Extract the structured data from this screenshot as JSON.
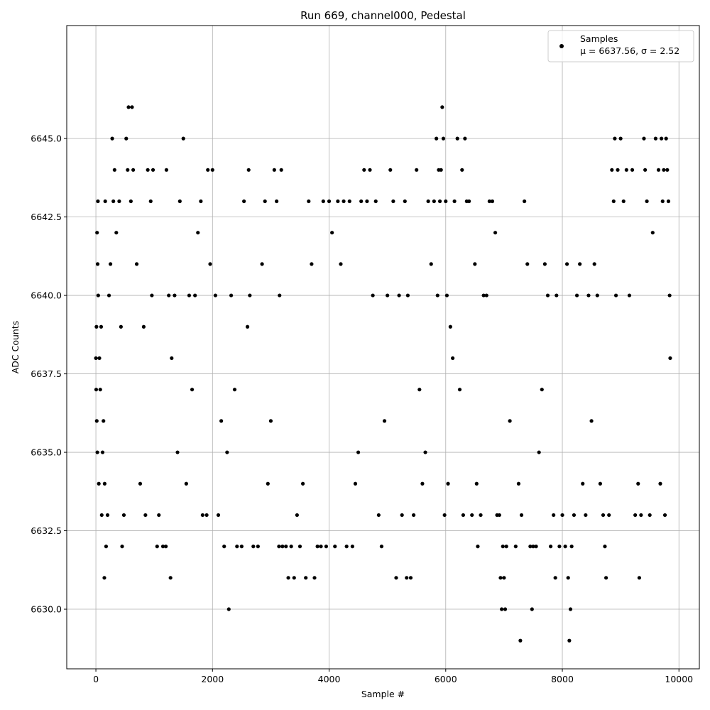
{
  "chart_data": {
    "type": "scatter",
    "title": "Run 669, channel000, Pedestal",
    "xlabel": "Sample #",
    "ylabel": "ADC Counts",
    "xlim": [
      -500,
      10350
    ],
    "ylim": [
      6628.1,
      6648.6
    ],
    "xticks": [
      0,
      2000,
      4000,
      6000,
      8000,
      10000
    ],
    "xtick_labels": [
      "0",
      "2000",
      "4000",
      "6000",
      "8000",
      "10000"
    ],
    "yticks": [
      6630.0,
      6632.5,
      6635.0,
      6637.5,
      6640.0,
      6642.5,
      6645.0
    ],
    "ytick_labels": [
      "6630.0",
      "6632.5",
      "6635.0",
      "6637.5",
      "6640.0",
      "6642.5",
      "6645.0"
    ],
    "grid": true,
    "marker_color": "#000000",
    "legend": {
      "position": "top-right",
      "label": "Samples",
      "stats_label": "μ = 6637.56, σ = 2.52"
    },
    "series": [
      {
        "name": "Samples",
        "points": [
          [
            0,
            6638
          ],
          [
            5,
            6637
          ],
          [
            10,
            6639
          ],
          [
            15,
            6636
          ],
          [
            20,
            6642
          ],
          [
            25,
            6635
          ],
          [
            30,
            6641
          ],
          [
            35,
            6643
          ],
          [
            40,
            6640
          ],
          [
            50,
            6634
          ],
          [
            60,
            6638
          ],
          [
            75,
            6637
          ],
          [
            90,
            6639
          ],
          [
            100,
            6633
          ],
          [
            115,
            6635
          ],
          [
            130,
            6636
          ],
          [
            145,
            6631
          ],
          [
            150,
            6634
          ],
          [
            160,
            6643
          ],
          [
            175,
            6632
          ],
          [
            200,
            6633
          ],
          [
            225,
            6640
          ],
          [
            250,
            6641
          ],
          [
            280,
            6645
          ],
          [
            300,
            6643
          ],
          [
            320,
            6644
          ],
          [
            350,
            6642
          ],
          [
            400,
            6643
          ],
          [
            430,
            6639
          ],
          [
            450,
            6632
          ],
          [
            480,
            6633
          ],
          [
            520,
            6645
          ],
          [
            545,
            6644
          ],
          [
            560,
            6646
          ],
          [
            600,
            6643
          ],
          [
            620,
            6646
          ],
          [
            640,
            6644
          ],
          [
            700,
            6641
          ],
          [
            760,
            6634
          ],
          [
            820,
            6639
          ],
          [
            850,
            6633
          ],
          [
            890,
            6644
          ],
          [
            940,
            6643
          ],
          [
            960,
            6640
          ],
          [
            980,
            6644
          ],
          [
            1050,
            6632
          ],
          [
            1080,
            6633
          ],
          [
            1150,
            6632
          ],
          [
            1200,
            6632
          ],
          [
            1210,
            6644
          ],
          [
            1250,
            6640
          ],
          [
            1280,
            6631
          ],
          [
            1300,
            6638
          ],
          [
            1350,
            6640
          ],
          [
            1400,
            6635
          ],
          [
            1440,
            6643
          ],
          [
            1500,
            6645
          ],
          [
            1550,
            6634
          ],
          [
            1600,
            6640
          ],
          [
            1650,
            6637
          ],
          [
            1700,
            6640
          ],
          [
            1750,
            6642
          ],
          [
            1800,
            6643
          ],
          [
            1830,
            6633
          ],
          [
            1900,
            6633
          ],
          [
            1920,
            6644
          ],
          [
            1960,
            6641
          ],
          [
            2000,
            6644
          ],
          [
            2050,
            6640
          ],
          [
            2100,
            6633
          ],
          [
            2150,
            6636
          ],
          [
            2200,
            6632
          ],
          [
            2250,
            6635
          ],
          [
            2280,
            6630
          ],
          [
            2320,
            6640
          ],
          [
            2380,
            6637
          ],
          [
            2420,
            6632
          ],
          [
            2500,
            6632
          ],
          [
            2540,
            6643
          ],
          [
            2600,
            6639
          ],
          [
            2620,
            6644
          ],
          [
            2640,
            6640
          ],
          [
            2700,
            6632
          ],
          [
            2780,
            6632
          ],
          [
            2850,
            6641
          ],
          [
            2900,
            6643
          ],
          [
            2950,
            6634
          ],
          [
            3000,
            6636
          ],
          [
            3060,
            6644
          ],
          [
            3100,
            6643
          ],
          [
            3140,
            6632
          ],
          [
            3150,
            6640
          ],
          [
            3180,
            6644
          ],
          [
            3200,
            6632
          ],
          [
            3260,
            6632
          ],
          [
            3300,
            6631
          ],
          [
            3350,
            6632
          ],
          [
            3400,
            6631
          ],
          [
            3450,
            6633
          ],
          [
            3500,
            6632
          ],
          [
            3550,
            6634
          ],
          [
            3600,
            6631
          ],
          [
            3650,
            6643
          ],
          [
            3700,
            6641
          ],
          [
            3750,
            6631
          ],
          [
            3800,
            6632
          ],
          [
            3860,
            6632
          ],
          [
            3900,
            6643
          ],
          [
            3950,
            6632
          ],
          [
            4000,
            6643
          ],
          [
            4050,
            6642
          ],
          [
            4100,
            6632
          ],
          [
            4150,
            6643
          ],
          [
            4200,
            6641
          ],
          [
            4250,
            6643
          ],
          [
            4300,
            6632
          ],
          [
            4350,
            6643
          ],
          [
            4400,
            6632
          ],
          [
            4450,
            6634
          ],
          [
            4500,
            6635
          ],
          [
            4550,
            6643
          ],
          [
            4600,
            6644
          ],
          [
            4650,
            6643
          ],
          [
            4700,
            6644
          ],
          [
            4750,
            6640
          ],
          [
            4800,
            6643
          ],
          [
            4850,
            6633
          ],
          [
            4900,
            6632
          ],
          [
            4950,
            6636
          ],
          [
            5000,
            6640
          ],
          [
            5050,
            6644
          ],
          [
            5100,
            6643
          ],
          [
            5150,
            6631
          ],
          [
            5200,
            6640
          ],
          [
            5250,
            6633
          ],
          [
            5300,
            6643
          ],
          [
            5330,
            6631
          ],
          [
            5350,
            6640
          ],
          [
            5400,
            6631
          ],
          [
            5450,
            6633
          ],
          [
            5500,
            6644
          ],
          [
            5550,
            6637
          ],
          [
            5600,
            6634
          ],
          [
            5650,
            6635
          ],
          [
            5700,
            6643
          ],
          [
            5750,
            6641
          ],
          [
            5800,
            6643
          ],
          [
            5840,
            6645
          ],
          [
            5860,
            6640
          ],
          [
            5880,
            6644
          ],
          [
            5900,
            6643
          ],
          [
            5920,
            6644
          ],
          [
            5940,
            6646
          ],
          [
            5960,
            6645
          ],
          [
            5980,
            6633
          ],
          [
            6000,
            6643
          ],
          [
            6020,
            6640
          ],
          [
            6040,
            6634
          ],
          [
            6080,
            6639
          ],
          [
            6120,
            6638
          ],
          [
            6150,
            6643
          ],
          [
            6200,
            6645
          ],
          [
            6240,
            6637
          ],
          [
            6280,
            6644
          ],
          [
            6300,
            6633
          ],
          [
            6330,
            6645
          ],
          [
            6360,
            6643
          ],
          [
            6400,
            6643
          ],
          [
            6450,
            6633
          ],
          [
            6500,
            6641
          ],
          [
            6530,
            6634
          ],
          [
            6550,
            6632
          ],
          [
            6600,
            6633
          ],
          [
            6650,
            6640
          ],
          [
            6700,
            6640
          ],
          [
            6750,
            6643
          ],
          [
            6800,
            6643
          ],
          [
            6850,
            6642
          ],
          [
            6880,
            6633
          ],
          [
            6920,
            6633
          ],
          [
            6940,
            6631
          ],
          [
            6960,
            6630
          ],
          [
            6980,
            6632
          ],
          [
            7000,
            6631
          ],
          [
            7020,
            6630
          ],
          [
            7040,
            6632
          ],
          [
            7100,
            6636
          ],
          [
            7200,
            6632
          ],
          [
            7250,
            6634
          ],
          [
            7280,
            6629
          ],
          [
            7300,
            6633
          ],
          [
            7350,
            6643
          ],
          [
            7400,
            6641
          ],
          [
            7450,
            6632
          ],
          [
            7480,
            6630
          ],
          [
            7500,
            6632
          ],
          [
            7550,
            6632
          ],
          [
            7600,
            6635
          ],
          [
            7650,
            6637
          ],
          [
            7700,
            6641
          ],
          [
            7750,
            6640
          ],
          [
            7800,
            6632
          ],
          [
            7850,
            6633
          ],
          [
            7880,
            6631
          ],
          [
            7900,
            6640
          ],
          [
            7950,
            6632
          ],
          [
            8000,
            6633
          ],
          [
            8050,
            6632
          ],
          [
            8080,
            6641
          ],
          [
            8100,
            6631
          ],
          [
            8120,
            6629
          ],
          [
            8140,
            6630
          ],
          [
            8160,
            6632
          ],
          [
            8200,
            6633
          ],
          [
            8250,
            6640
          ],
          [
            8300,
            6641
          ],
          [
            8350,
            6634
          ],
          [
            8400,
            6633
          ],
          [
            8450,
            6640
          ],
          [
            8500,
            6636
          ],
          [
            8550,
            6641
          ],
          [
            8600,
            6640
          ],
          [
            8650,
            6634
          ],
          [
            8700,
            6633
          ],
          [
            8730,
            6632
          ],
          [
            8750,
            6631
          ],
          [
            8800,
            6633
          ],
          [
            8850,
            6644
          ],
          [
            8880,
            6643
          ],
          [
            8900,
            6645
          ],
          [
            8920,
            6640
          ],
          [
            8950,
            6644
          ],
          [
            9000,
            6645
          ],
          [
            9050,
            6643
          ],
          [
            9100,
            6644
          ],
          [
            9150,
            6640
          ],
          [
            9200,
            6644
          ],
          [
            9250,
            6633
          ],
          [
            9300,
            6634
          ],
          [
            9320,
            6631
          ],
          [
            9350,
            6633
          ],
          [
            9400,
            6645
          ],
          [
            9420,
            6644
          ],
          [
            9450,
            6643
          ],
          [
            9500,
            6633
          ],
          [
            9550,
            6642
          ],
          [
            9600,
            6645
          ],
          [
            9650,
            6644
          ],
          [
            9680,
            6634
          ],
          [
            9700,
            6645
          ],
          [
            9720,
            6643
          ],
          [
            9740,
            6644
          ],
          [
            9760,
            6633
          ],
          [
            9780,
            6645
          ],
          [
            9800,
            6644
          ],
          [
            9820,
            6643
          ],
          [
            9840,
            6640
          ],
          [
            9850,
            6638
          ]
        ]
      }
    ]
  }
}
